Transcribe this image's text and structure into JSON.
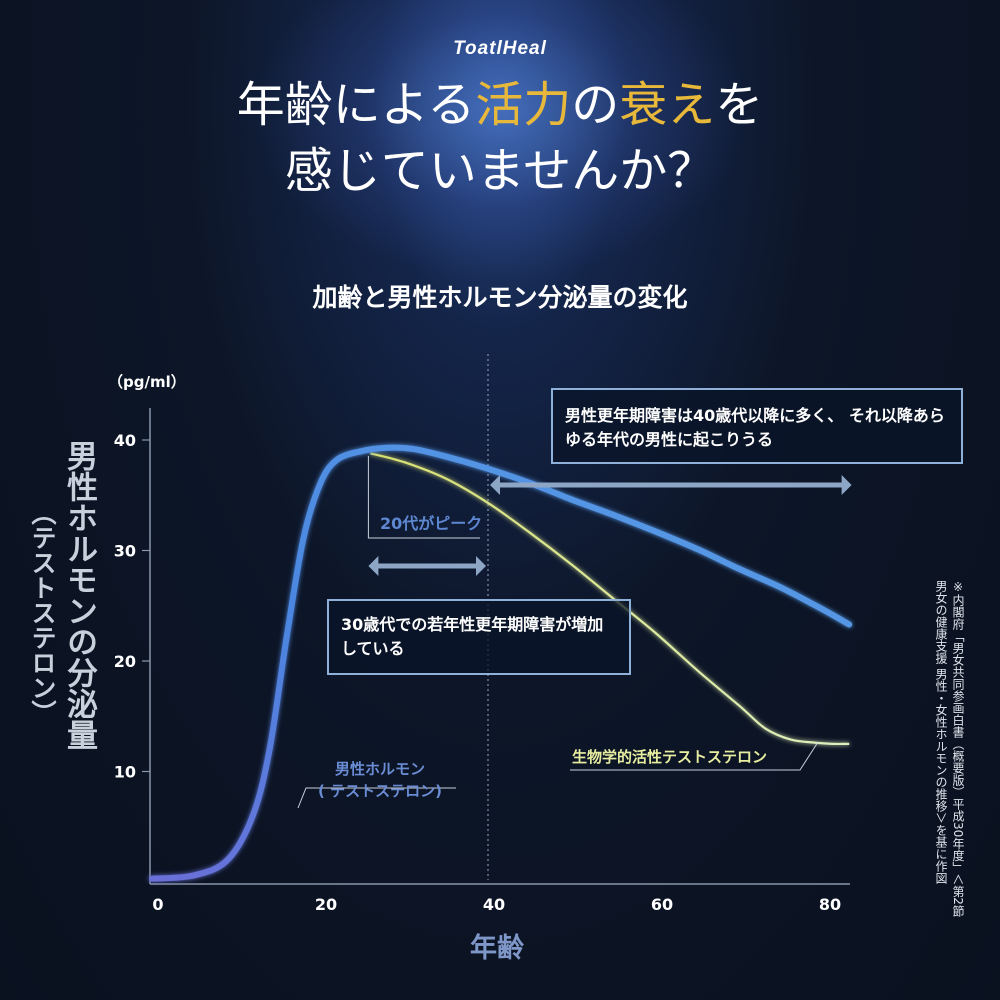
{
  "brand": "ToatlHeal",
  "headline": {
    "line1_a": "年齢による",
    "line1_b": "活力",
    "line1_c": "の",
    "line1_d": "衰え",
    "line1_e": "を",
    "line2": "感じていませんか？"
  },
  "colors": {
    "accent_gold": "#e8b83a",
    "male_line": "#4f7fd6",
    "bio_line": "#e8eea0",
    "callout_border": "#8fb0d8"
  },
  "chart_data": {
    "type": "line",
    "title": "加齢と男性ホルモン分泌量の変化",
    "unit": "（pg/ml）",
    "ylabel": "男性ホルモンの分泌量",
    "ylabel_sub": "（テストステロン）",
    "xlabel": "年齢",
    "xlim": [
      0,
      83
    ],
    "ylim": [
      0,
      42
    ],
    "xticks": [
      0,
      20,
      40,
      60,
      80
    ],
    "yticks": [
      10,
      20,
      30,
      40
    ],
    "series": [
      {
        "name": "男性ホルモン（テストステロン）",
        "label_line1": "男性ホルモン",
        "label_line2": "( テストステロン)",
        "x": [
          0,
          5,
          9,
          12,
          14,
          16,
          18,
          20,
          22,
          25,
          28,
          31,
          35,
          40,
          45,
          50,
          55,
          60,
          65,
          70,
          75,
          80,
          83
        ],
        "y": [
          0.3,
          0.6,
          2,
          6,
          12,
          22,
          31,
          36,
          38.2,
          39,
          39.3,
          39.2,
          38.5,
          37.4,
          36.1,
          34.6,
          33.2,
          31.7,
          30.1,
          28.3,
          26.6,
          24.6,
          23.3
        ]
      },
      {
        "name": "生物学的活性テストステロン",
        "x": [
          26,
          30,
          35,
          40,
          45,
          50,
          55,
          60,
          65,
          70,
          73,
          76,
          79,
          81,
          83
        ],
        "y": [
          38.8,
          38,
          36.5,
          34.3,
          31.6,
          28.7,
          25.6,
          22.5,
          19.1,
          15.9,
          13.9,
          12.9,
          12.6,
          12.5,
          12.5
        ]
      }
    ],
    "annotations": {
      "peak_label": "20代がピーク",
      "callout_40": "男性更年期障害は40歳代以降に多く、 それ以降あらゆる年代の男性に起こりうる",
      "callout_30": "30歳代での若年性更年期障害が増加している",
      "divider_x": 40,
      "arrow_30s": [
        26,
        40
      ],
      "arrow_40plus": [
        40,
        84
      ]
    }
  },
  "source": "※内閣府「男女共同参画白書（概要版）平成30年度」＜第2節　男女の健康支援 男性・女性ホルモンの推移＞を基に作図"
}
